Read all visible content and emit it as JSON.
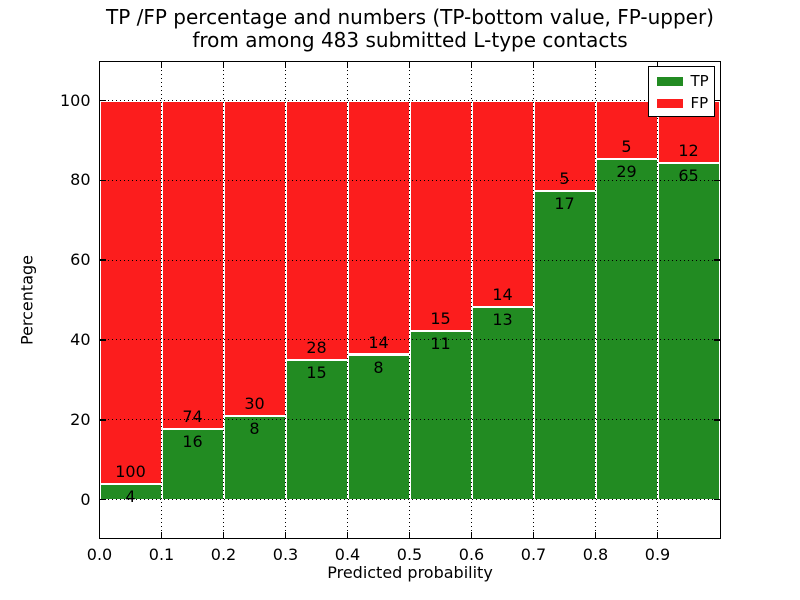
{
  "figure": {
    "title_line1": "TP /FP percentage and numbers (TP-bottom value, FP-upper)",
    "title_line2": "from among 483 submitted L-type contacts"
  },
  "legend": {
    "position": "upper right",
    "items": [
      {
        "label": "TP",
        "color": "#228b22"
      },
      {
        "label": "FP",
        "color": "#fc1d1d"
      }
    ]
  },
  "chart_data": {
    "type": "bar",
    "stacked": true,
    "units": "percent_of_bin",
    "title": "TP /FP percentage and numbers (TP-bottom value, FP-upper) from among 483 submitted L-type contacts",
    "xlabel": "Predicted probability",
    "ylabel": "Percentage",
    "total_contacts": 483,
    "bins": [
      "0.0-0.1",
      "0.1-0.2",
      "0.2-0.3",
      "0.3-0.4",
      "0.4-0.5",
      "0.5-0.6",
      "0.6-0.7",
      "0.7-0.8",
      "0.8-0.9",
      "0.9-1.0"
    ],
    "series": [
      {
        "name": "TP",
        "color": "#228b22",
        "counts": [
          4,
          16,
          8,
          15,
          8,
          11,
          13,
          17,
          29,
          65
        ]
      },
      {
        "name": "FP",
        "color": "#fc1d1d",
        "counts": [
          100,
          74,
          30,
          28,
          14,
          15,
          14,
          5,
          5,
          12
        ]
      }
    ],
    "tp_percent_of_bin": [
      3.8,
      17.8,
      21.1,
      34.9,
      36.4,
      42.3,
      48.1,
      77.3,
      85.3,
      84.4
    ],
    "xticks": [
      "0.0",
      "0.1",
      "0.2",
      "0.3",
      "0.4",
      "0.5",
      "0.6",
      "0.7",
      "0.8",
      "0.9"
    ],
    "yticks": [
      0,
      20,
      40,
      60,
      80,
      100
    ],
    "xlim": [
      0.0,
      1.0
    ],
    "ylim": [
      -9.5,
      109.8
    ],
    "grid": true,
    "grid_style": "dotted",
    "bar_edge_color": "#ffffff",
    "legend_position": "upper right"
  }
}
